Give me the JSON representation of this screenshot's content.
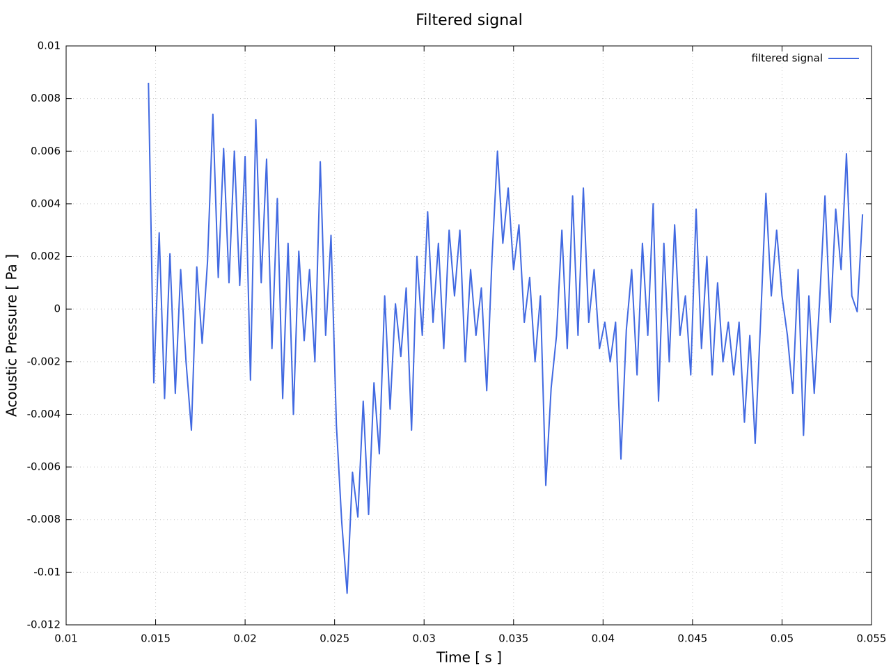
{
  "chart_data": {
    "type": "line",
    "title": "Filtered signal",
    "xlabel": "Time [ s ]",
    "ylabel": "Acoustic Pressure [ Pa ]",
    "x": [
      0.0146,
      0.0149,
      0.0152,
      0.0155,
      0.0158,
      0.0161,
      0.0164,
      0.0167,
      0.017,
      0.0173,
      0.0176,
      0.0179,
      0.0182,
      0.0185,
      0.0188,
      0.0191,
      0.0194,
      0.0197,
      0.02,
      0.0203,
      0.0206,
      0.0209,
      0.0212,
      0.0215,
      0.0218,
      0.0221,
      0.0224,
      0.0227,
      0.023,
      0.0233,
      0.0236,
      0.0239,
      0.0242,
      0.0245,
      0.0248,
      0.0251,
      0.0254,
      0.0257,
      0.026,
      0.0263,
      0.0266,
      0.0269,
      0.0272,
      0.0275,
      0.0278,
      0.0281,
      0.0284,
      0.0287,
      0.029,
      0.0293,
      0.0296,
      0.0299,
      0.0302,
      0.0305,
      0.0308,
      0.0311,
      0.0314,
      0.0317,
      0.032,
      0.0323,
      0.0326,
      0.0329,
      0.0332,
      0.0335,
      0.0338,
      0.0341,
      0.0344,
      0.0347,
      0.035,
      0.0353,
      0.0356,
      0.0359,
      0.0362,
      0.0365,
      0.0368,
      0.0371,
      0.0374,
      0.0377,
      0.038,
      0.0383,
      0.0386,
      0.0389,
      0.0392,
      0.0395,
      0.0398,
      0.0401,
      0.0404,
      0.0407,
      0.041,
      0.0413,
      0.0416,
      0.0419,
      0.0422,
      0.0425,
      0.0428,
      0.0431,
      0.0434,
      0.0437,
      0.044,
      0.0443,
      0.0446,
      0.0449,
      0.0452,
      0.0455,
      0.0458,
      0.0461,
      0.0464,
      0.0467,
      0.047,
      0.0473,
      0.0476,
      0.0479,
      0.0482,
      0.0485,
      0.0488,
      0.0491,
      0.0494,
      0.0497,
      0.05,
      0.0503,
      0.0506,
      0.0509,
      0.0512,
      0.0515,
      0.0518,
      0.0521,
      0.0524,
      0.0527,
      0.053,
      0.0533,
      0.0536,
      0.0539,
      0.0542,
      0.0545
    ],
    "series": [
      {
        "name": "filtered signal",
        "color": "#4169e1",
        "values": [
          0.0086,
          -0.0028,
          0.0029,
          -0.0034,
          0.0021,
          -0.0032,
          0.0015,
          -0.002,
          -0.0046,
          0.0016,
          -0.0013,
          0.0018,
          0.0074,
          0.0012,
          0.0061,
          0.001,
          0.006,
          0.0009,
          0.0058,
          -0.0027,
          0.0072,
          0.001,
          0.0057,
          -0.0015,
          0.0042,
          -0.0034,
          0.0025,
          -0.004,
          0.0022,
          -0.0012,
          0.0015,
          -0.002,
          0.0056,
          -0.001,
          0.0028,
          -0.0044,
          -0.0081,
          -0.0108,
          -0.0062,
          -0.0079,
          -0.0035,
          -0.0078,
          -0.0028,
          -0.0055,
          0.0005,
          -0.0038,
          0.0002,
          -0.0018,
          0.0008,
          -0.0046,
          0.002,
          -0.001,
          0.0037,
          -0.0005,
          0.0025,
          -0.0015,
          0.003,
          0.0005,
          0.003,
          -0.002,
          0.0015,
          -0.001,
          0.0008,
          -0.0031,
          0.002,
          0.006,
          0.0025,
          0.0046,
          0.0015,
          0.0032,
          -0.0005,
          0.0012,
          -0.002,
          0.0005,
          -0.0067,
          -0.003,
          -0.001,
          0.003,
          -0.0015,
          0.0043,
          -0.001,
          0.0046,
          -0.0005,
          0.0015,
          -0.0015,
          -0.0005,
          -0.002,
          -0.0005,
          -0.0057,
          -0.0008,
          0.0015,
          -0.0025,
          0.0025,
          -0.001,
          0.004,
          -0.0035,
          0.0025,
          -0.002,
          0.0032,
          -0.001,
          0.0005,
          -0.0025,
          0.0038,
          -0.0015,
          0.002,
          -0.0025,
          0.001,
          -0.002,
          -0.0005,
          -0.0025,
          -0.0005,
          -0.0043,
          -0.001,
          -0.0051,
          -0.0005,
          0.0044,
          0.0005,
          0.003,
          0.0005,
          -0.001,
          -0.0032,
          0.0015,
          -0.0048,
          0.0005,
          -0.0032,
          0.0003,
          0.0043,
          -0.0005,
          0.0038,
          0.0015,
          0.0059,
          0.0005,
          -0.0001,
          0.0036
        ]
      }
    ],
    "xlim": [
      0.01,
      0.055
    ],
    "xticks": [
      0.01,
      0.015,
      0.02,
      0.025,
      0.03,
      0.035,
      0.04,
      0.045,
      0.05,
      0.055
    ],
    "ylim": [
      -0.012,
      0.01
    ],
    "yticks": [
      0.01,
      0.008,
      0.006,
      0.004,
      0.002,
      0,
      -0.002,
      -0.004,
      -0.006,
      -0.008,
      -0.01,
      -0.012
    ],
    "grid": true,
    "legend": "top-right"
  }
}
